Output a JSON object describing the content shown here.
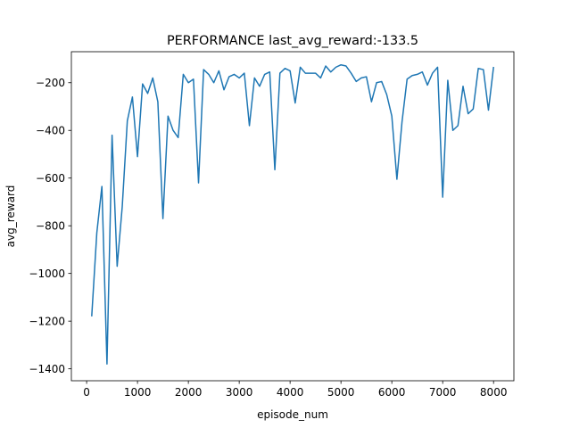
{
  "chart_data": {
    "type": "line",
    "title": "PERFORMANCE last_avg_reward:-133.5",
    "xlabel": "episode_num",
    "ylabel": "avg_reward",
    "xlim": [
      -300,
      8400
    ],
    "ylim": [
      -1450,
      -70
    ],
    "xticks": [
      0,
      1000,
      2000,
      3000,
      4000,
      5000,
      6000,
      7000,
      8000
    ],
    "xtick_labels": [
      "0",
      "1000",
      "2000",
      "3000",
      "4000",
      "5000",
      "6000",
      "7000",
      "8000"
    ],
    "yticks": [
      -1400,
      -1200,
      -1000,
      -800,
      -600,
      -400,
      -200
    ],
    "ytick_labels": [
      "−1400",
      "−1200",
      "−1000",
      "−800",
      "−600",
      "−400",
      "−200"
    ],
    "grid": false,
    "line_color": "#1f77b4",
    "series": [
      {
        "x": [
          100,
          200,
          300,
          400,
          500,
          600,
          700,
          800,
          900,
          1000,
          1100,
          1200,
          1300,
          1400,
          1500,
          1600,
          1700,
          1800,
          1900,
          2000,
          2100,
          2200,
          2300,
          2400,
          2500,
          2600,
          2700,
          2800,
          2900,
          3000,
          3100,
          3200,
          3300,
          3400,
          3500,
          3600,
          3700,
          3800,
          3900,
          4000,
          4100,
          4200,
          4300,
          4400,
          4500,
          4600,
          4700,
          4800,
          4900,
          5000,
          5100,
          5200,
          5300,
          5400,
          5500,
          5600,
          5700,
          5800,
          5900,
          6000,
          6100,
          6200,
          6300,
          6400,
          6500,
          6600,
          6700,
          6800,
          6900,
          7000,
          7100,
          7200,
          7300,
          7400,
          7500,
          7600,
          7700,
          7800,
          7900,
          8000
        ],
        "values": [
          -1180,
          -830,
          -635,
          -1380,
          -420,
          -970,
          -720,
          -360,
          -260,
          -510,
          -205,
          -245,
          -180,
          -280,
          -770,
          -340,
          -400,
          -430,
          -165,
          -200,
          -185,
          -620,
          -145,
          -165,
          -200,
          -150,
          -230,
          -175,
          -165,
          -180,
          -160,
          -380,
          -180,
          -215,
          -165,
          -155,
          -565,
          -160,
          -140,
          -150,
          -285,
          -135,
          -160,
          -160,
          -160,
          -180,
          -130,
          -155,
          -135,
          -125,
          -130,
          -160,
          -195,
          -180,
          -175,
          -280,
          -200,
          -195,
          -250,
          -340,
          -605,
          -365,
          -185,
          -170,
          -165,
          -155,
          -210,
          -160,
          -135,
          -680,
          -190,
          -400,
          -380,
          -215,
          -330,
          -310,
          -140,
          -145,
          -315,
          -133.5
        ]
      }
    ]
  }
}
